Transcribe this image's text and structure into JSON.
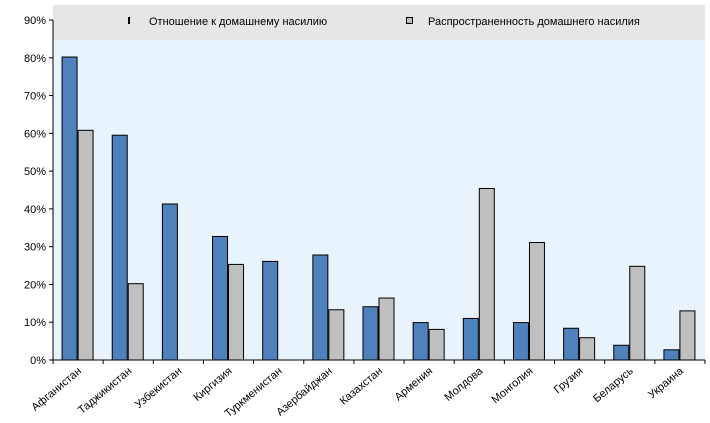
{
  "chart_data": {
    "type": "bar",
    "title": "",
    "xlabel": "",
    "ylabel": "",
    "ylim": [
      0,
      90
    ],
    "yticks": [
      0,
      10,
      20,
      30,
      40,
      50,
      60,
      70,
      80,
      90
    ],
    "ytick_labels": [
      "0%",
      "10%",
      "20%",
      "30%",
      "40%",
      "50%",
      "60%",
      "70%",
      "80%",
      "90%"
    ],
    "grid": false,
    "legend_position": "top",
    "categories": [
      "Афганистан",
      "Таджикистан",
      "Узбекистан",
      "Киргизия",
      "Туркменистан",
      "Азербайджан",
      "Казахстан",
      "Армения",
      "Молдова",
      "Монголия",
      "Грузия",
      "Беларусь",
      "Украина"
    ],
    "series": [
      {
        "name": "Отношение к домашнему насилию",
        "color": "#4f81bd",
        "values": [
          80.2,
          59.5,
          41.3,
          32.7,
          26.1,
          27.8,
          14.1,
          9.9,
          11.0,
          9.9,
          8.4,
          3.9,
          2.7
        ]
      },
      {
        "name": "Распространенность домашнего насилия",
        "color": "#c0c0c0",
        "values": [
          60.8,
          20.2,
          null,
          25.3,
          null,
          13.3,
          16.4,
          8.1,
          45.4,
          31.1,
          5.9,
          24.8,
          13.0
        ]
      }
    ]
  }
}
